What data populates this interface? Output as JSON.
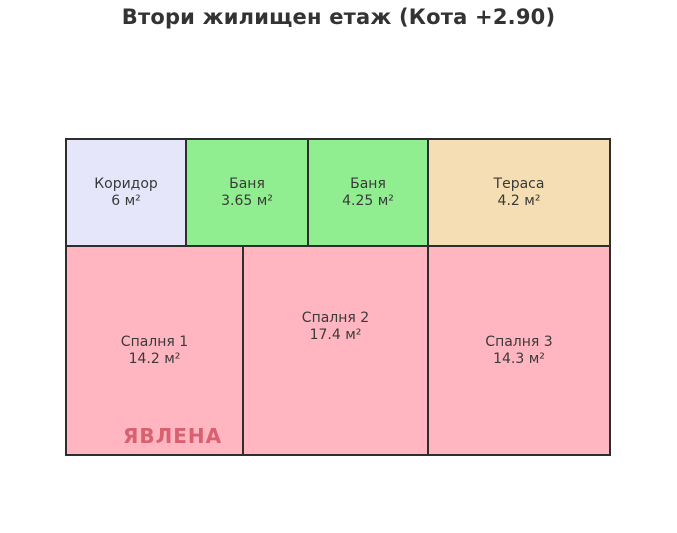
{
  "title": "Втори жилищен етаж (Кота +2.90)",
  "floor_plan": {
    "rooms": [
      {
        "name": "Коридор",
        "area": "6 м²",
        "type": "corridor"
      },
      {
        "name": "Баня",
        "area": "3.65 м²",
        "type": "bath"
      },
      {
        "name": "Баня",
        "area": "4.25 м²",
        "type": "bath"
      },
      {
        "name": "Тераса",
        "area": "4.2 м²",
        "type": "terrace"
      },
      {
        "name": "Спалня 1",
        "area": "14.2 м²",
        "type": "bedroom"
      },
      {
        "name": "Спалня 2",
        "area": "17.4 м²",
        "type": "bedroom"
      },
      {
        "name": "Спалня 3",
        "area": "14.3 м²",
        "type": "bedroom"
      }
    ],
    "watermark": "ЯВЛЕНА"
  },
  "colors": {
    "corridor": "#e6e6fa",
    "bath": "#90ee90",
    "terrace": "#f5deb3",
    "bedroom": "#ffb6c1",
    "border": "#2e2e2e",
    "watermark": "#d8606f",
    "title_text": "#333333",
    "label_text": "#3a3a3a"
  }
}
